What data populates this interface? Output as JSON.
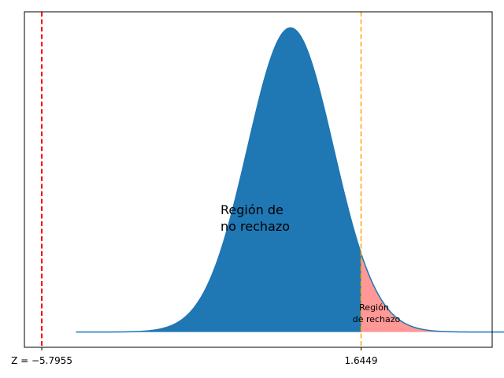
{
  "chart_data": {
    "type": "area",
    "title": "",
    "xlabel": "",
    "ylabel": "",
    "distribution": "standard-normal",
    "xlim": [
      -6.2,
      4.7
    ],
    "ylim": [
      -0.02,
      0.42
    ],
    "curve_range": [
      -5.0,
      5.0
    ],
    "grid": false,
    "series": [
      {
        "role": "non-rejection-region",
        "from": -5.0,
        "to": 1.6449,
        "color": "#1f77b4"
      },
      {
        "role": "rejection-region",
        "from": 1.6449,
        "to": 5.0,
        "color": "#ff9896"
      }
    ],
    "vlines": [
      {
        "x": -5.7955,
        "color": "#ff0000",
        "style": "dashed"
      },
      {
        "x": 1.6449,
        "color": "#ffa500",
        "style": "dashed"
      }
    ],
    "xticks": [
      {
        "value": -5.7955,
        "label": "Z = −5.7955"
      },
      {
        "value": 1.6449,
        "label": "1.6449"
      }
    ],
    "annotations": {
      "non_rejection": [
        "Región de",
        "no rechazo"
      ],
      "rejection": [
        "Región",
        "de rechazo"
      ]
    },
    "colors": {
      "line": "#1f77b4",
      "fill": "#1f77b4",
      "reject_fill": "#ff9896",
      "axes": "#000000"
    }
  }
}
